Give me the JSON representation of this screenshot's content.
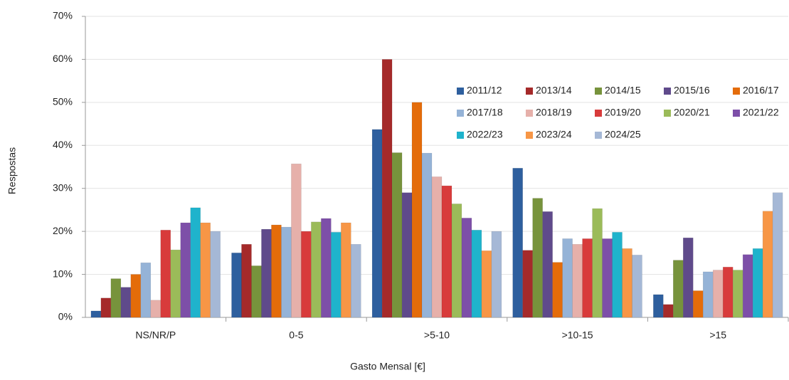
{
  "chart_data": {
    "type": "bar",
    "x_label": "Gasto Mensal [€]",
    "y_label": "Respostas",
    "categories": [
      "NS/NR/P",
      "0-5",
      ">5-10",
      ">10-15",
      ">15"
    ],
    "ylim": [
      0,
      70
    ],
    "yticks": [
      {
        "value": 0,
        "label": "0%"
      },
      {
        "value": 10,
        "label": "10%"
      },
      {
        "value": 20,
        "label": "20%"
      },
      {
        "value": 30,
        "label": "30%"
      },
      {
        "value": 40,
        "label": "40%"
      },
      {
        "value": 50,
        "label": "50%"
      },
      {
        "value": 60,
        "label": "60%"
      },
      {
        "value": 70,
        "label": "70%"
      }
    ],
    "grid": true,
    "legend": "upper right",
    "series": [
      {
        "name": "2011/12",
        "color": "#2e5f9e",
        "values": [
          1.5,
          15,
          43.7,
          34.7,
          5.3
        ]
      },
      {
        "name": "2013/14",
        "color": "#a52a2a",
        "values": [
          4.5,
          17,
          60,
          15.6,
          3
        ]
      },
      {
        "name": "2014/15",
        "color": "#77933c",
        "values": [
          9,
          12,
          38.3,
          27.7,
          13.3
        ]
      },
      {
        "name": "2015/16",
        "color": "#5f4a8b",
        "values": [
          7,
          20.5,
          29,
          24.6,
          18.5
        ]
      },
      {
        "name": "2016/17",
        "color": "#e46c0a",
        "values": [
          10,
          21.5,
          50,
          12.8,
          6.2
        ]
      },
      {
        "name": "2017/18",
        "color": "#95b3d7",
        "values": [
          12.7,
          21,
          38.2,
          18.3,
          10.6
        ]
      },
      {
        "name": "2018/19",
        "color": "#e6b0aa",
        "values": [
          4,
          35.7,
          32.7,
          17,
          11
        ]
      },
      {
        "name": "2019/20",
        "color": "#d83b3b",
        "values": [
          20.3,
          20,
          30.6,
          18.3,
          11.7
        ]
      },
      {
        "name": "2020/21",
        "color": "#9bbb59",
        "values": [
          15.7,
          22.2,
          26.4,
          25.3,
          11
        ]
      },
      {
        "name": "2021/22",
        "color": "#7d4fa8",
        "values": [
          22,
          23,
          23.1,
          18.3,
          14.6
        ]
      },
      {
        "name": "2022/23",
        "color": "#1fb3cc",
        "values": [
          25.5,
          19.8,
          20.3,
          19.8,
          16
        ]
      },
      {
        "name": "2023/24",
        "color": "#f79646",
        "values": [
          22,
          22,
          15.5,
          16,
          24.7
        ]
      },
      {
        "name": "2024/25",
        "color": "#a5b8d6",
        "values": [
          20,
          17,
          20,
          14.5,
          29
        ]
      }
    ]
  }
}
